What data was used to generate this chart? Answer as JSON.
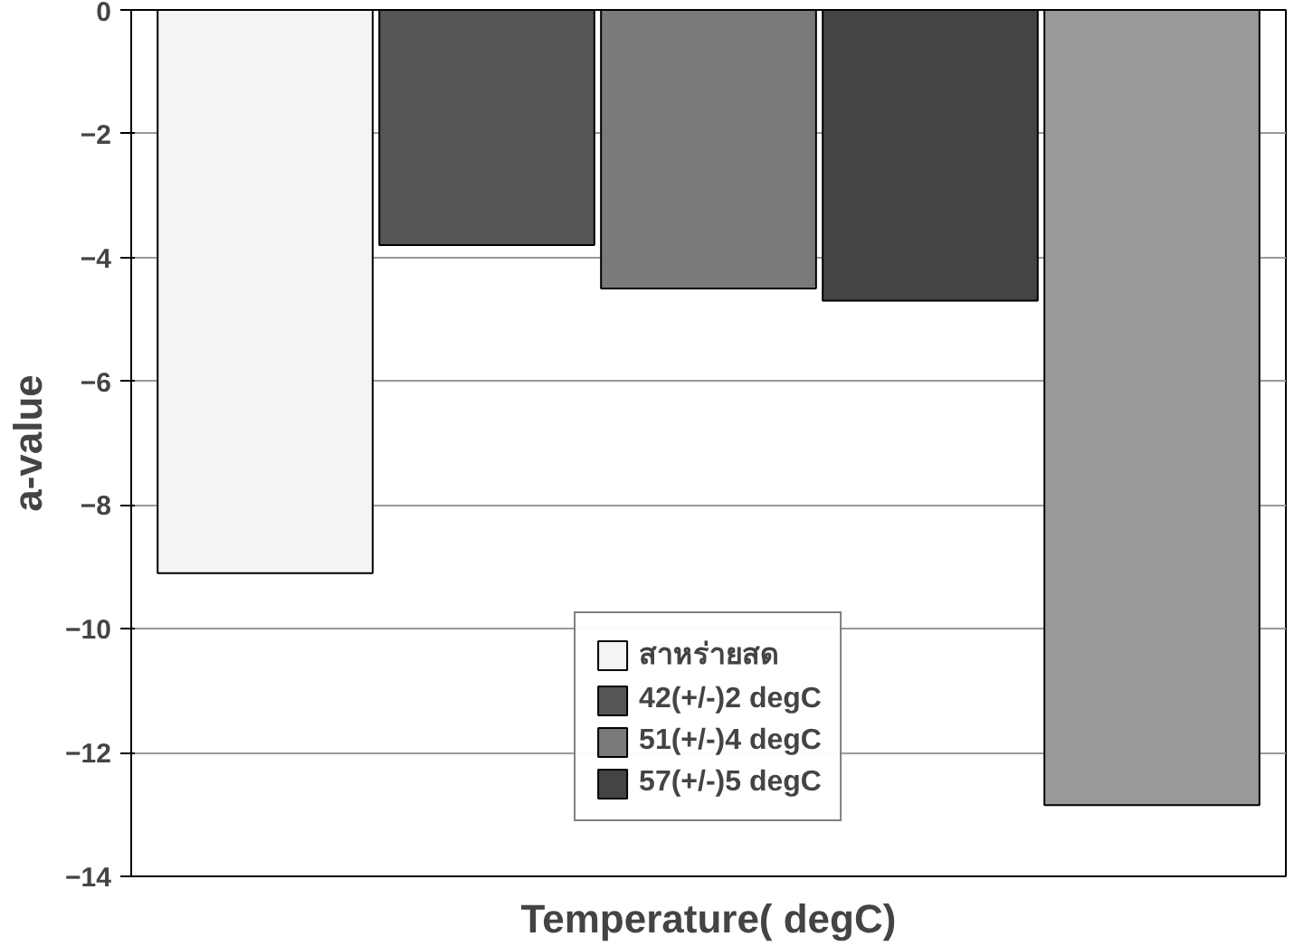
{
  "chart_data": {
    "type": "bar",
    "xlabel": "Temperature( degC)",
    "ylabel": "a-value",
    "categories": [
      null
    ],
    "series": [
      {
        "name": "สาหร่ายสด",
        "color": "#f4f4f4",
        "values": [
          -9.1
        ]
      },
      {
        "name": "42(+/-)2 degC",
        "color": "#555555",
        "values": [
          -3.8
        ]
      },
      {
        "name": "51(+/-)4 degC",
        "color": "#7a7a7a",
        "values": [
          -4.5
        ]
      },
      {
        "name": "57(+/-)5 degC",
        "color": "#444444",
        "values": [
          -4.7
        ]
      },
      {
        "color": "#9a9a9a",
        "values": [
          -12.85
        ]
      }
    ],
    "ylim": [
      -14,
      0
    ],
    "yticks": [
      -14,
      -12,
      -10,
      -8,
      -6,
      -4,
      -2,
      0
    ],
    "grid": "y",
    "legend": "bottom"
  }
}
